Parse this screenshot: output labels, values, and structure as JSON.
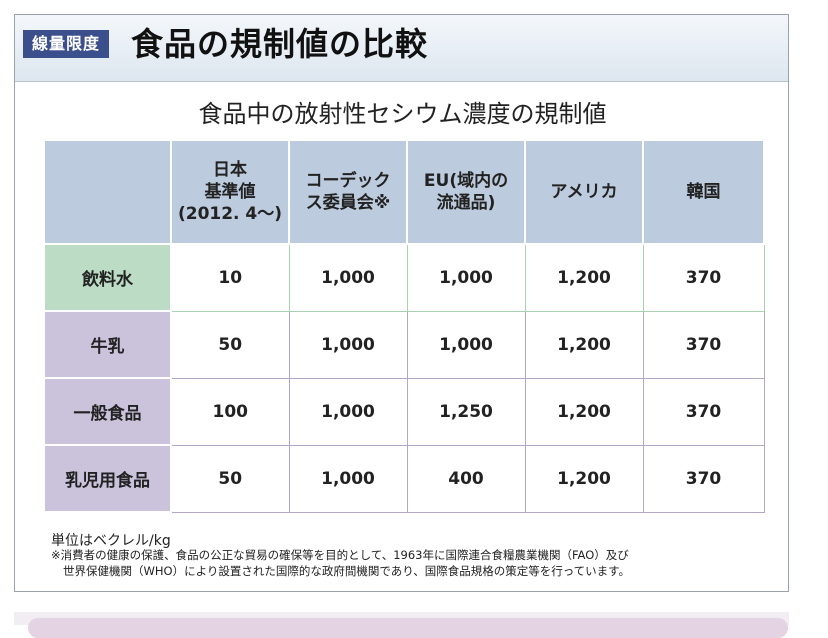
{
  "header": {
    "tag": "線量限度",
    "title": "食品の規制値の比較"
  },
  "subtitle": "食品中の放射性セシウム濃度の規制値",
  "table": {
    "columns": [
      {
        "line1": "日本",
        "line2": "基準値",
        "line3": "(2012. 4〜)"
      },
      {
        "line1": "コーデック",
        "line2": "ス委員会※",
        "line3": ""
      },
      {
        "line1": "EU(域内の",
        "line2": "流通品)",
        "line3": ""
      },
      {
        "line1": "アメリカ",
        "line2": "",
        "line3": ""
      },
      {
        "line1": "韓国",
        "line2": "",
        "line3": ""
      }
    ],
    "rows": [
      {
        "label": "飲料水",
        "values": [
          "10",
          "1,000",
          "1,000",
          "1,200",
          "370"
        ]
      },
      {
        "label": "牛乳",
        "values": [
          "50",
          "1,000",
          "1,000",
          "1,200",
          "370"
        ]
      },
      {
        "label": "一般食品",
        "values": [
          "100",
          "1,000",
          "1,250",
          "1,200",
          "370"
        ]
      },
      {
        "label": "乳児用食品",
        "values": [
          "50",
          "1,000",
          "400",
          "1,200",
          "370"
        ]
      }
    ]
  },
  "footer": {
    "unit": "単位はベクレル/kg",
    "note_line1": "※消費者の健康の保護、食品の公正な貿易の確保等を目的として、1963年に国際連合食糧農業機関（FAO）及び",
    "note_line2": "世界保健機関（WHO）により設置された国際的な政府間機関であり、国際食品規格の策定等を行っています。"
  },
  "colors": {
    "tag_bg": "#3c4f8d",
    "header_cell": "#bccbdd",
    "water_row": "#bcdcc5",
    "other_row": "#cbc3dc"
  }
}
